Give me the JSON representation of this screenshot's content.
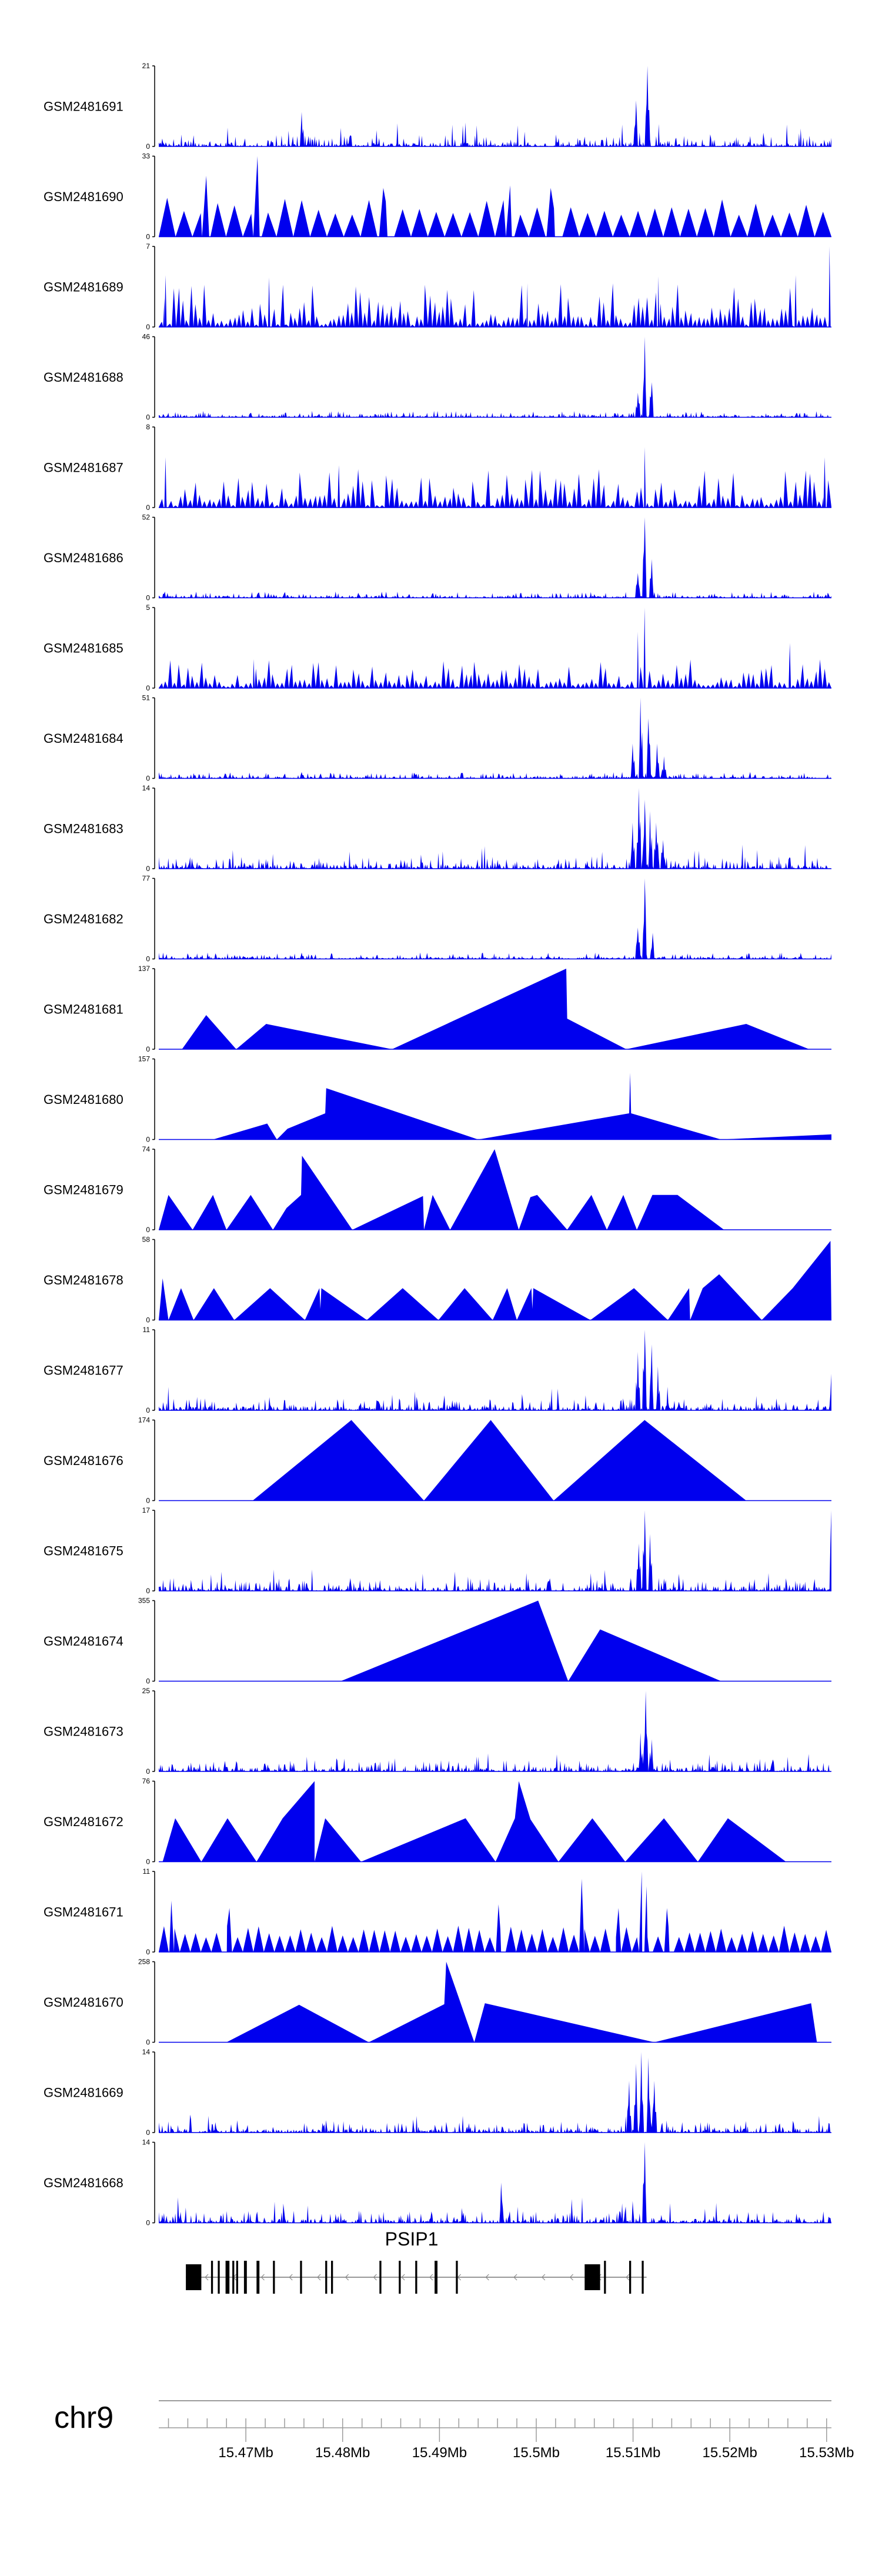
{
  "colors": {
    "signal": "#0000ee",
    "axis": "#000000",
    "line": "#9a9a9a",
    "gene": "#000000"
  },
  "chart_data": {
    "type": "area",
    "genome": {
      "chromosome": "chr9",
      "start": 15.461,
      "end": 15.5305,
      "unit": "Mb"
    },
    "x_ticks": [
      {
        "value": 15.47,
        "label": "15.47Mb"
      },
      {
        "value": 15.48,
        "label": "15.48Mb"
      },
      {
        "value": 15.49,
        "label": "15.49Mb"
      },
      {
        "value": 15.5,
        "label": "15.5Mb"
      },
      {
        "value": 15.51,
        "label": "15.51Mb"
      },
      {
        "value": 15.52,
        "label": "15.52Mb"
      },
      {
        "value": 15.53,
        "label": "15.53Mb"
      }
    ],
    "gene": {
      "name": "PSIP1",
      "strand": "-",
      "start": 15.4638,
      "end": 15.5114,
      "exons": [
        [
          15.4638,
          15.4654
        ],
        [
          15.4664,
          15.4666
        ],
        [
          15.4671,
          15.4673
        ],
        [
          15.4679,
          15.4683
        ],
        [
          15.4686,
          15.4688
        ],
        [
          15.469,
          15.4692
        ],
        [
          15.4698,
          15.4701
        ],
        [
          15.4711,
          15.4714
        ],
        [
          15.4728,
          15.473
        ],
        [
          15.4756,
          15.4758
        ],
        [
          15.4782,
          15.4784
        ],
        [
          15.4788,
          15.479
        ],
        [
          15.4838,
          15.484
        ],
        [
          15.4858,
          15.486
        ],
        [
          15.4875,
          15.4877
        ],
        [
          15.4895,
          15.4898
        ],
        [
          15.4917,
          15.4919
        ],
        [
          15.505,
          15.5066
        ],
        [
          15.507,
          15.5072
        ],
        [
          15.5096,
          15.5098
        ],
        [
          15.5109,
          15.5111
        ]
      ]
    },
    "tracks": [
      {
        "name": "GSM2481691",
        "ymin": 0,
        "ymax": 21,
        "style": "noise",
        "density": 0.14,
        "noise": 0.2,
        "range": [
          15.461,
          15.5305
        ],
        "peaks": [
          [
            15.4758,
            9
          ],
          [
            15.5103,
            12
          ],
          [
            15.5115,
            21
          ]
        ]
      },
      {
        "name": "GSM2481690",
        "ymin": 0,
        "ymax": 33,
        "style": "tri",
        "n": 40,
        "hmin": 9,
        "hmax": 16,
        "range": [
          15.461,
          15.5305
        ],
        "peaks": [
          [
            15.4659,
            25
          ],
          [
            15.4712,
            33
          ],
          [
            15.4842,
            20
          ],
          [
            15.4973,
            21
          ],
          [
            15.5015,
            20
          ]
        ]
      },
      {
        "name": "GSM2481689",
        "ymin": 0,
        "ymax": 7,
        "style": "spiky",
        "n": 155,
        "hmin": 0.6,
        "hmax": 3.8,
        "range": [
          15.461,
          15.5305
        ],
        "peaks": [
          [
            15.4617,
            4.5
          ],
          [
            15.4724,
            4.3
          ],
          [
            15.4991,
            3.8
          ],
          [
            15.5126,
            4.4
          ],
          [
            15.5268,
            4.5
          ],
          [
            15.5303,
            7
          ]
        ]
      },
      {
        "name": "GSM2481688",
        "ymin": 0,
        "ymax": 46,
        "style": "noise",
        "density": 0.08,
        "noise": 0.04,
        "range": [
          15.461,
          15.5305
        ],
        "peaks": [
          [
            15.5105,
            14
          ],
          [
            15.5112,
            46
          ],
          [
            15.5119,
            20
          ]
        ]
      },
      {
        "name": "GSM2481687",
        "ymin": 0,
        "ymax": 8,
        "style": "spiky",
        "n": 140,
        "hmin": 0.6,
        "hmax": 3.8,
        "range": [
          15.461,
          15.5305
        ],
        "peaks": [
          [
            15.4617,
            5
          ],
          [
            15.4796,
            4.2
          ],
          [
            15.5112,
            6
          ],
          [
            15.5298,
            5
          ]
        ]
      },
      {
        "name": "GSM2481686",
        "ymin": 0,
        "ymax": 52,
        "style": "noise",
        "density": 0.08,
        "noise": 0.03,
        "range": [
          15.461,
          15.5305
        ],
        "peaks": [
          [
            15.5105,
            16
          ],
          [
            15.5112,
            52
          ],
          [
            15.5119,
            25
          ]
        ]
      },
      {
        "name": "GSM2481685",
        "ymin": 0,
        "ymax": 5,
        "style": "spiky",
        "n": 150,
        "hmin": 0.3,
        "hmax": 1.8,
        "range": [
          15.461,
          15.5305
        ],
        "peaks": [
          [
            15.4708,
            1.8
          ],
          [
            15.5105,
            3.5
          ],
          [
            15.5112,
            5
          ],
          [
            15.5262,
            2.8
          ]
        ]
      },
      {
        "name": "GSM2481684",
        "ymin": 0,
        "ymax": 51,
        "style": "noise",
        "density": 0.08,
        "noise": 0.04,
        "range": [
          15.461,
          15.5305
        ],
        "peaks": [
          [
            15.4758,
            4
          ],
          [
            15.51,
            22
          ],
          [
            15.5108,
            51
          ],
          [
            15.5116,
            38
          ],
          [
            15.5125,
            22
          ],
          [
            15.5132,
            14
          ]
        ]
      },
      {
        "name": "GSM2481683",
        "ymin": 0,
        "ymax": 14,
        "style": "noise",
        "density": 0.15,
        "noise": 0.2,
        "range": [
          15.461,
          15.5305
        ],
        "peaks": [
          [
            15.51,
            8
          ],
          [
            15.5106,
            14
          ],
          [
            15.5112,
            12
          ],
          [
            15.5118,
            10
          ],
          [
            15.5124,
            8
          ],
          [
            15.5131,
            5
          ]
        ]
      },
      {
        "name": "GSM2481682",
        "ymin": 0,
        "ymax": 77,
        "style": "noise",
        "density": 0.08,
        "noise": 0.02,
        "range": [
          15.461,
          15.5305
        ],
        "peaks": [
          [
            15.4758,
            6
          ],
          [
            15.5105,
            30
          ],
          [
            15.5112,
            77
          ],
          [
            15.512,
            25
          ]
        ]
      },
      {
        "name": "GSM2481681",
        "ymin": 0,
        "ymax": 137,
        "style": "points",
        "points": [
          [
            15.4634,
            0
          ],
          [
            15.4659,
            58
          ],
          [
            15.469,
            0
          ],
          [
            15.4721,
            43
          ],
          [
            15.4851,
            0
          ],
          [
            15.5031,
            137
          ],
          [
            15.5032,
            52
          ],
          [
            15.5093,
            0
          ],
          [
            15.5217,
            43
          ],
          [
            15.5282,
            0
          ]
        ]
      },
      {
        "name": "GSM2481680",
        "ymin": 0,
        "ymax": 157,
        "style": "points",
        "points": [
          [
            15.4666,
            0
          ],
          [
            15.4722,
            31
          ],
          [
            15.4732,
            0
          ],
          [
            15.4743,
            21
          ],
          [
            15.4782,
            51
          ],
          [
            15.4783,
            100
          ],
          [
            15.494,
            0
          ],
          [
            15.5096,
            51
          ],
          [
            15.5097,
            130
          ],
          [
            15.5098,
            51
          ],
          [
            15.5191,
            0
          ],
          [
            15.5305,
            10
          ],
          [
            15.531,
            0
          ]
        ]
      },
      {
        "name": "GSM2481679",
        "ymin": 0,
        "ymax": 74,
        "style": "points",
        "points": [
          [
            15.461,
            0
          ],
          [
            15.462,
            32
          ],
          [
            15.4645,
            0
          ],
          [
            15.4666,
            32
          ],
          [
            15.468,
            0
          ],
          [
            15.4705,
            32
          ],
          [
            15.4728,
            0
          ],
          [
            15.4742,
            20
          ],
          [
            15.4757,
            32
          ],
          [
            15.4758,
            68
          ],
          [
            15.481,
            0
          ],
          [
            15.4883,
            31
          ],
          [
            15.4884,
            0
          ],
          [
            15.4893,
            32
          ],
          [
            15.4911,
            0
          ],
          [
            15.4957,
            74
          ],
          [
            15.4982,
            0
          ],
          [
            15.4994,
            30
          ],
          [
            15.5001,
            32
          ],
          [
            15.5032,
            0
          ],
          [
            15.5057,
            32
          ],
          [
            15.5073,
            0
          ],
          [
            15.509,
            32
          ],
          [
            15.5104,
            0
          ],
          [
            15.512,
            32
          ],
          [
            15.5146,
            32
          ],
          [
            15.5194,
            0
          ]
        ]
      },
      {
        "name": "GSM2481678",
        "ymin": 0,
        "ymax": 58,
        "style": "points",
        "points": [
          [
            15.461,
            0
          ],
          [
            15.4614,
            30
          ],
          [
            15.462,
            0
          ],
          [
            15.4633,
            23
          ],
          [
            15.4646,
            0
          ],
          [
            15.4667,
            23
          ],
          [
            15.4688,
            0
          ],
          [
            15.4725,
            23
          ],
          [
            15.4761,
            0
          ],
          [
            15.4776,
            23
          ],
          [
            15.4777,
            8
          ],
          [
            15.4778,
            23
          ],
          [
            15.4825,
            0
          ],
          [
            15.4862,
            23
          ],
          [
            15.4899,
            0
          ],
          [
            15.4926,
            23
          ],
          [
            15.4955,
            0
          ],
          [
            15.497,
            23
          ],
          [
            15.498,
            0
          ],
          [
            15.4995,
            23
          ],
          [
            15.4996,
            8
          ],
          [
            15.4997,
            23
          ],
          [
            15.5056,
            0
          ],
          [
            15.5101,
            23
          ],
          [
            15.5136,
            0
          ],
          [
            15.5158,
            23
          ],
          [
            15.5159,
            0
          ],
          [
            15.5172,
            23
          ],
          [
            15.5189,
            33
          ],
          [
            15.5233,
            0
          ],
          [
            15.5265,
            23
          ],
          [
            15.5304,
            57
          ],
          [
            15.5305,
            0
          ]
        ]
      },
      {
        "name": "GSM2481677",
        "ymin": 0,
        "ymax": 11,
        "style": "noise",
        "density": 0.15,
        "noise": 0.2,
        "range": [
          15.461,
          15.5305
        ],
        "peaks": [
          [
            15.5105,
            8
          ],
          [
            15.5112,
            11
          ],
          [
            15.5119,
            9
          ],
          [
            15.5126,
            6
          ],
          [
            15.5305,
            5
          ]
        ]
      },
      {
        "name": "GSM2481676",
        "ymin": 0,
        "ymax": 174,
        "style": "points",
        "points": [
          [
            15.4707,
            0
          ],
          [
            15.4809,
            174
          ],
          [
            15.4884,
            0
          ],
          [
            15.4953,
            174
          ],
          [
            15.5018,
            0
          ],
          [
            15.5112,
            174
          ],
          [
            15.5217,
            0
          ]
        ]
      },
      {
        "name": "GSM2481675",
        "ymin": 0,
        "ymax": 17,
        "style": "noise",
        "density": 0.16,
        "noise": 0.18,
        "range": [
          15.461,
          15.5305
        ],
        "peaks": [
          [
            15.5106,
            10
          ],
          [
            15.5112,
            17
          ],
          [
            15.5118,
            12
          ],
          [
            15.5305,
            17
          ]
        ]
      },
      {
        "name": "GSM2481674",
        "ymin": 0,
        "ymax": 355,
        "style": "points",
        "points": [
          [
            15.4798,
            0
          ],
          [
            15.5002,
            355
          ],
          [
            15.5033,
            0
          ],
          [
            15.5066,
            228
          ],
          [
            15.5191,
            0
          ]
        ]
      },
      {
        "name": "GSM2481673",
        "ymin": 0,
        "ymax": 25,
        "style": "noise",
        "density": 0.14,
        "noise": 0.15,
        "range": [
          15.461,
          15.5305
        ],
        "peaks": [
          [
            15.5108,
            12
          ],
          [
            15.5113,
            25
          ],
          [
            15.5119,
            10
          ]
        ]
      },
      {
        "name": "GSM2481672",
        "ymin": 0,
        "ymax": 76,
        "style": "points",
        "points": [
          [
            15.4614,
            0
          ],
          [
            15.4627,
            41
          ],
          [
            15.4654,
            0
          ],
          [
            15.4681,
            41
          ],
          [
            15.4711,
            0
          ],
          [
            15.4738,
            41
          ],
          [
            15.4771,
            76
          ],
          [
            15.4771,
            0
          ],
          [
            15.4782,
            41
          ],
          [
            15.4819,
            0
          ],
          [
            15.4927,
            41
          ],
          [
            15.4958,
            0
          ],
          [
            15.4978,
            41
          ],
          [
            15.4982,
            76
          ],
          [
            15.4994,
            40
          ],
          [
            15.5023,
            0
          ],
          [
            15.5058,
            41
          ],
          [
            15.5092,
            0
          ],
          [
            15.5132,
            41
          ],
          [
            15.5167,
            0
          ],
          [
            15.5198,
            41
          ],
          [
            15.5258,
            0
          ]
        ]
      },
      {
        "name": "GSM2481671",
        "ymin": 0,
        "ymax": 11,
        "style": "tri",
        "n": 64,
        "hmin": 2,
        "hmax": 3.6,
        "range": [
          15.461,
          15.5305
        ],
        "peaks": [
          [
            15.4623,
            7
          ],
          [
            15.4683,
            6
          ],
          [
            15.4961,
            6.5
          ],
          [
            15.5047,
            10
          ],
          [
            15.5085,
            6
          ],
          [
            15.5109,
            11
          ],
          [
            15.5114,
            9
          ],
          [
            15.5135,
            6
          ]
        ]
      },
      {
        "name": "GSM2481670",
        "ymin": 0,
        "ymax": 258,
        "style": "points",
        "points": [
          [
            15.468,
            0
          ],
          [
            15.4755,
            120
          ],
          [
            15.4827,
            0
          ],
          [
            15.4905,
            122
          ],
          [
            15.4907,
            258
          ],
          [
            15.4936,
            0
          ],
          [
            15.4947,
            125
          ],
          [
            15.5122,
            0
          ],
          [
            15.5284,
            125
          ],
          [
            15.529,
            0
          ]
        ]
      },
      {
        "name": "GSM2481669",
        "ymin": 0,
        "ymax": 14,
        "style": "noise",
        "density": 0.14,
        "noise": 0.15,
        "range": [
          15.461,
          15.5305
        ],
        "peaks": [
          [
            15.5096,
            9
          ],
          [
            15.5103,
            12
          ],
          [
            15.5109,
            14
          ],
          [
            15.5116,
            13
          ],
          [
            15.5122,
            9
          ]
        ]
      },
      {
        "name": "GSM2481668",
        "ymin": 0,
        "ymax": 14,
        "style": "noise",
        "density": 0.15,
        "noise": 0.22,
        "range": [
          15.461,
          15.5305
        ],
        "peaks": [
          [
            15.4964,
            7
          ],
          [
            15.5112,
            14
          ]
        ]
      }
    ]
  }
}
